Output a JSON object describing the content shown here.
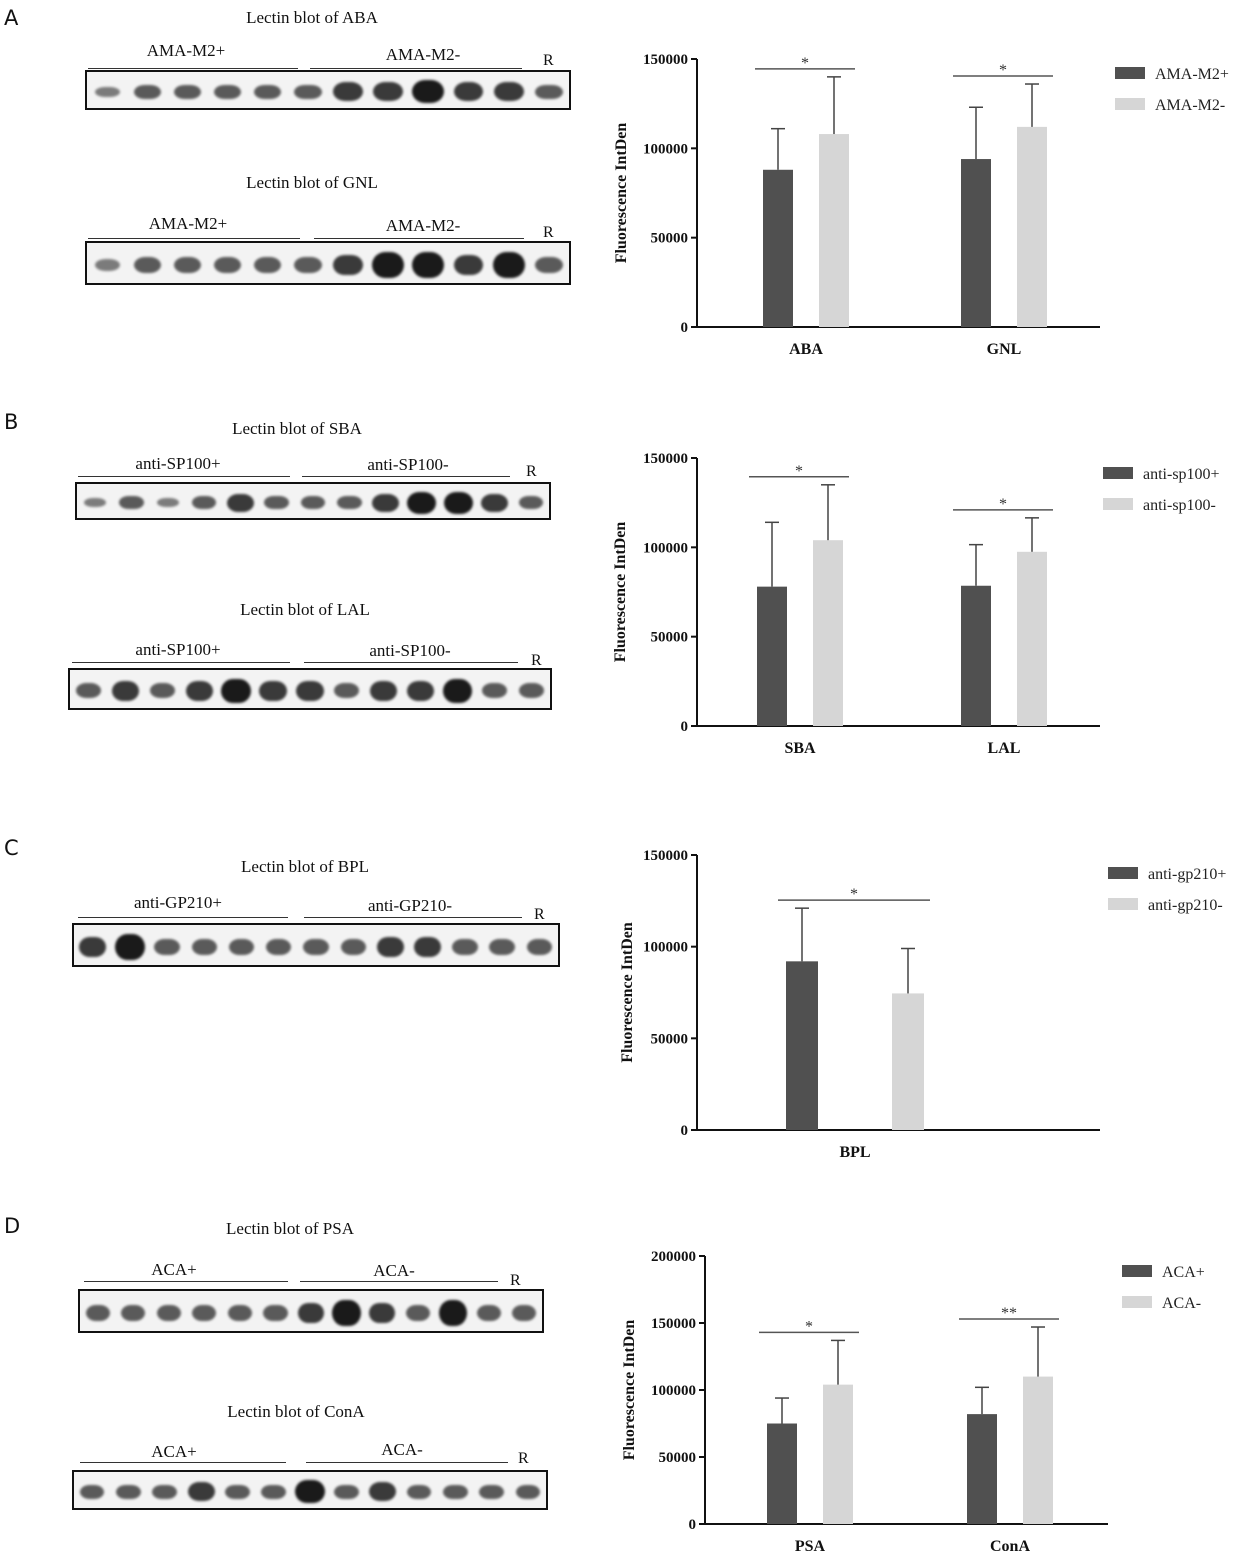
{
  "panels": [
    {
      "letter": "A",
      "blots": [
        {
          "title": "Lectin blot of ABA",
          "pos_label": "AMA-M2+",
          "neg_label": "AMA-M2-",
          "r_label": "R"
        },
        {
          "title": "Lectin blot of GNL",
          "pos_label": "AMA-M2+",
          "neg_label": "AMA-M2-",
          "r_label": "R"
        }
      ]
    },
    {
      "letter": "B",
      "blots": [
        {
          "title": "Lectin blot of SBA",
          "pos_label": "anti-SP100+",
          "neg_label": "anti-SP100-",
          "r_label": "R"
        },
        {
          "title": "Lectin blot of LAL",
          "pos_label": "anti-SP100+",
          "neg_label": "anti-SP100-",
          "r_label": "R"
        }
      ]
    },
    {
      "letter": "C",
      "blots": [
        {
          "title": "Lectin blot of BPL",
          "pos_label": "anti-GP210+",
          "neg_label": "anti-GP210-",
          "r_label": "R"
        }
      ]
    },
    {
      "letter": "D",
      "blots": [
        {
          "title": "Lectin blot of PSA",
          "pos_label": "ACA+",
          "neg_label": "ACA-",
          "r_label": "R"
        },
        {
          "title": "Lectin blot of ConA",
          "pos_label": "ACA+",
          "neg_label": "ACA-",
          "r_label": "R"
        }
      ]
    }
  ],
  "colors": {
    "dark_series": "#505050",
    "light_series": "#d6d6d6",
    "axis": "#111111"
  },
  "chart_data": [
    {
      "type": "bar",
      "ylabel": "Fluorescence IntDen",
      "ylim": [
        0,
        150000
      ],
      "yticks": [
        0,
        50000,
        100000,
        150000
      ],
      "categories": [
        "ABA",
        "GNL"
      ],
      "legend_position": "top-right",
      "series": [
        {
          "name": "AMA-M2+",
          "values": [
            88000,
            94000
          ],
          "errors": [
            23000,
            29000
          ]
        },
        {
          "name": "AMA-M2-",
          "values": [
            108000,
            112000
          ],
          "errors": [
            32000,
            24000
          ]
        }
      ],
      "annotations": [
        {
          "category": "ABA",
          "label": "*"
        },
        {
          "category": "GNL",
          "label": "*"
        }
      ]
    },
    {
      "type": "bar",
      "ylabel": "Fluorescence IntDen",
      "ylim": [
        0,
        150000
      ],
      "yticks": [
        0,
        50000,
        100000,
        150000
      ],
      "categories": [
        "SBA",
        "LAL"
      ],
      "legend_position": "top-right",
      "series": [
        {
          "name": "anti-sp100+",
          "values": [
            78000,
            78500
          ],
          "errors": [
            36000,
            23000
          ]
        },
        {
          "name": "anti-sp100-",
          "values": [
            104000,
            97500
          ],
          "errors": [
            31000,
            19000
          ]
        }
      ],
      "annotations": [
        {
          "category": "SBA",
          "label": "*"
        },
        {
          "category": "LAL",
          "label": "*"
        }
      ]
    },
    {
      "type": "bar",
      "ylabel": "Fluorescence IntDen",
      "ylim": [
        0,
        150000
      ],
      "yticks": [
        0,
        50000,
        100000,
        150000
      ],
      "categories": [
        "BPL"
      ],
      "legend_position": "top-right",
      "series": [
        {
          "name": "anti-gp210+",
          "values": [
            92000
          ],
          "errors": [
            29000
          ]
        },
        {
          "name": "anti-gp210-",
          "values": [
            74500
          ],
          "errors": [
            24500
          ]
        }
      ],
      "annotations": [
        {
          "category": "BPL",
          "label": "*"
        }
      ]
    },
    {
      "type": "bar",
      "ylabel": "Fluorescence IntDen",
      "ylim": [
        0,
        200000
      ],
      "yticks": [
        0,
        50000,
        100000,
        150000,
        200000
      ],
      "categories": [
        "PSA",
        "ConA"
      ],
      "legend_position": "top-right",
      "series": [
        {
          "name": "ACA+",
          "values": [
            75000,
            82000
          ],
          "errors": [
            19000,
            20000
          ]
        },
        {
          "name": "ACA-",
          "values": [
            104000,
            110000
          ],
          "errors": [
            33000,
            37000
          ]
        }
      ],
      "annotations": [
        {
          "category": "PSA",
          "label": "*"
        },
        {
          "category": "ConA",
          "label": "**"
        }
      ]
    }
  ]
}
